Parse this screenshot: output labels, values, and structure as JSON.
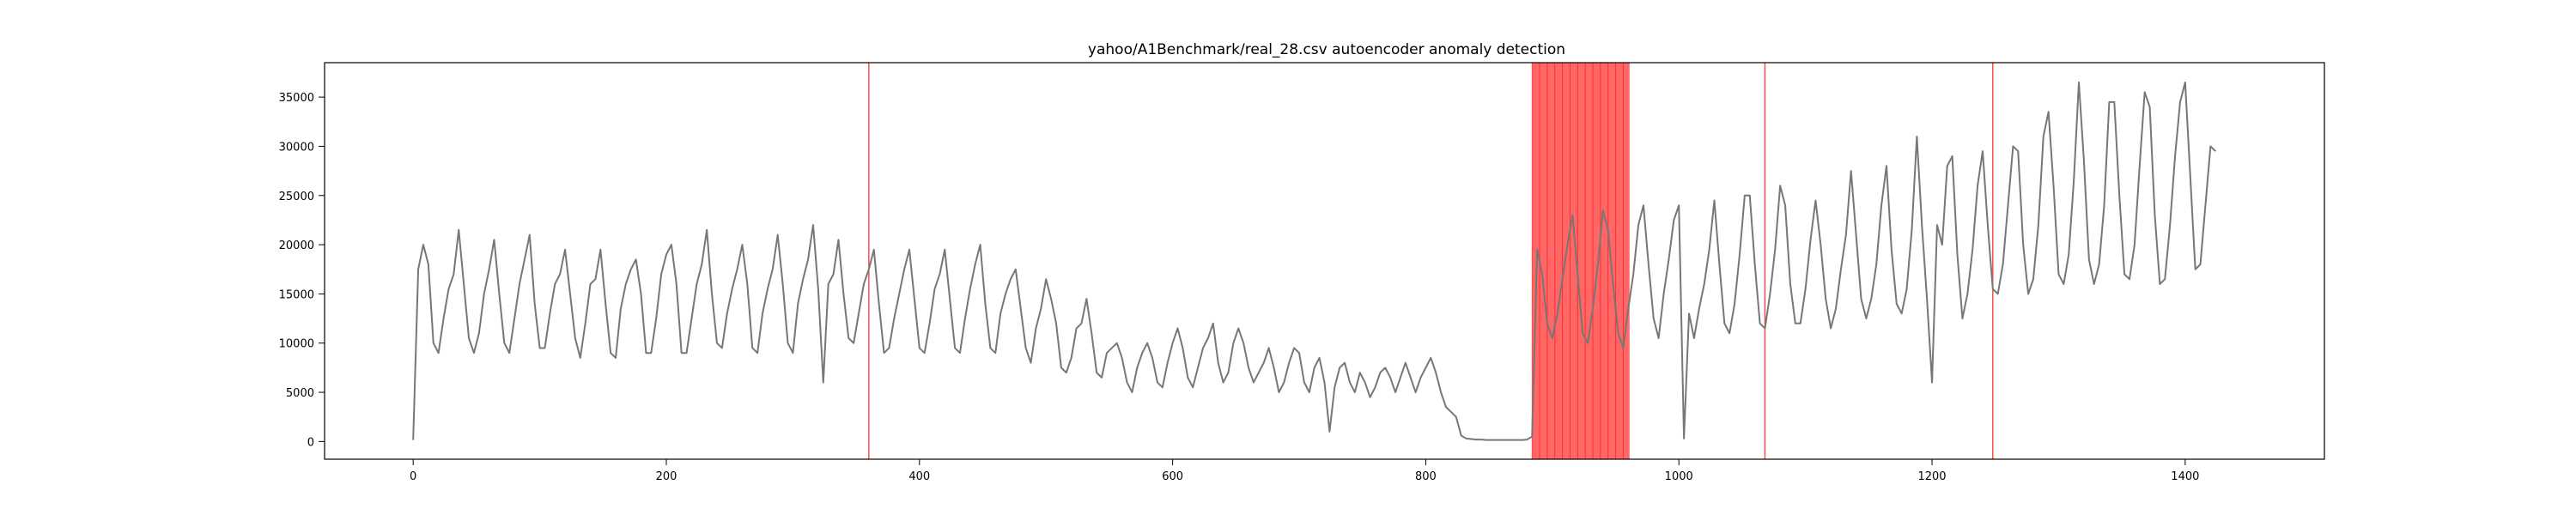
{
  "chart_data": {
    "type": "line",
    "title": "yahoo/A1Benchmark/real_28.csv autoencoder anomaly detection",
    "xlabel": "",
    "ylabel": "",
    "xlim": [
      -70,
      1510
    ],
    "ylim": [
      -1800,
      38500
    ],
    "x_ticks": [
      0,
      200,
      400,
      600,
      800,
      1000,
      1200,
      1400
    ],
    "y_ticks": [
      0,
      5000,
      10000,
      15000,
      20000,
      25000,
      30000,
      35000
    ],
    "grid": false,
    "line_color": "#777777",
    "anomaly_color": "#ff0000",
    "series": [
      {
        "values": [
          150,
          17500,
          20000,
          18000,
          10000,
          9000,
          12500,
          15500,
          17000,
          21500,
          16000,
          10500,
          9000,
          11000,
          15000,
          17500,
          20500,
          15000,
          10000,
          9000,
          12500,
          16000,
          18500,
          21000,
          14000,
          9500,
          9500,
          13000,
          16000,
          17000,
          19500,
          15000,
          10500,
          8500,
          12000,
          16000,
          16500,
          19500,
          14000,
          9000,
          8500,
          13500,
          16000,
          17500,
          18500,
          15000,
          9000,
          9000,
          12500,
          17000,
          19000,
          20000,
          16000,
          9000,
          9000,
          12500,
          16000,
          18000,
          21500,
          15000,
          10000,
          9500,
          13000,
          15500,
          17500,
          20000,
          16000,
          9500,
          9000,
          13000,
          15500,
          17500,
          21000,
          16000,
          10000,
          9000,
          14000,
          16500,
          18500,
          22000,
          15500,
          6000,
          16000,
          17000,
          20500,
          15000,
          10500,
          10000,
          13000,
          16000,
          17500,
          19500,
          14000,
          9000,
          9500,
          12500,
          15000,
          17500,
          19500,
          14500,
          9500,
          9000,
          12000,
          15500,
          17000,
          19500,
          14500,
          9500,
          9000,
          12500,
          15500,
          18000,
          20000,
          14000,
          9500,
          9000,
          13000,
          15000,
          16500,
          17500,
          13500,
          9500,
          8000,
          11500,
          13500,
          16500,
          14500,
          12000,
          7500,
          7000,
          8500,
          11500,
          12000,
          14500,
          11000,
          7000,
          6500,
          9000,
          9500,
          10000,
          8500,
          6000,
          5000,
          7500,
          9000,
          10000,
          8500,
          6000,
          5500,
          8000,
          10000,
          11500,
          9500,
          6500,
          5500,
          7500,
          9500,
          10500,
          12000,
          8000,
          6000,
          7000,
          10000,
          11500,
          10000,
          7500,
          6000,
          7000,
          8000,
          9500,
          7500,
          5000,
          6000,
          8000,
          9500,
          9000,
          6000,
          5000,
          7500,
          8500,
          6000,
          1000,
          5500,
          7500,
          8000,
          6000,
          5000,
          7000,
          6000,
          4500,
          5500,
          7000,
          7500,
          6500,
          5000,
          6500,
          8000,
          6500,
          5000,
          6500,
          7500,
          8500,
          7000,
          5000,
          3500,
          3000,
          2500,
          600,
          300,
          250,
          200,
          200,
          150,
          150,
          150,
          150,
          150,
          150,
          150,
          150,
          200,
          500,
          19500,
          17000,
          12000,
          10500,
          13000,
          16500,
          20000,
          23000,
          17000,
          11000,
          10000,
          13500,
          18000,
          23500,
          21500,
          16000,
          11000,
          9500,
          13500,
          17000,
          22000,
          24000,
          18000,
          12500,
          10500,
          15000,
          18500,
          22500,
          24000,
          300,
          13000,
          10500,
          13500,
          16000,
          19500,
          24500,
          18000,
          12000,
          11000,
          14000,
          19000,
          25000,
          25000,
          18000,
          12000,
          11500,
          15000,
          19500,
          26000,
          24000,
          16000,
          12000,
          12000,
          15500,
          20500,
          24500,
          20000,
          14500,
          11500,
          13500,
          17500,
          21000,
          27500,
          21000,
          14500,
          12500,
          14500,
          18000,
          24000,
          28000,
          19500,
          14000,
          13000,
          15500,
          21500,
          31000,
          22000,
          14500,
          6000,
          22000,
          20000,
          28000,
          29000,
          19000,
          12500,
          15000,
          19500,
          26000,
          29500,
          22000,
          15500,
          15000,
          18000,
          24000,
          30000,
          29500,
          20000,
          15000,
          16500,
          22000,
          31000,
          33500,
          26000,
          17000,
          16000,
          19000,
          26500,
          36500,
          28500,
          18500,
          16000,
          18000,
          24000,
          34500,
          34500,
          25000,
          17000,
          16500,
          20000,
          28000,
          35500,
          34000,
          23000,
          16000,
          16500,
          22000,
          29000,
          34500,
          36500,
          27000,
          17500,
          18000,
          24000,
          30000,
          29500
        ],
        "dx": 4
      }
    ],
    "anomaly_lines_x": [
      360,
      1068,
      1248
    ],
    "anomaly_spans": [
      {
        "x_start": 884,
        "x_end": 961
      }
    ]
  }
}
